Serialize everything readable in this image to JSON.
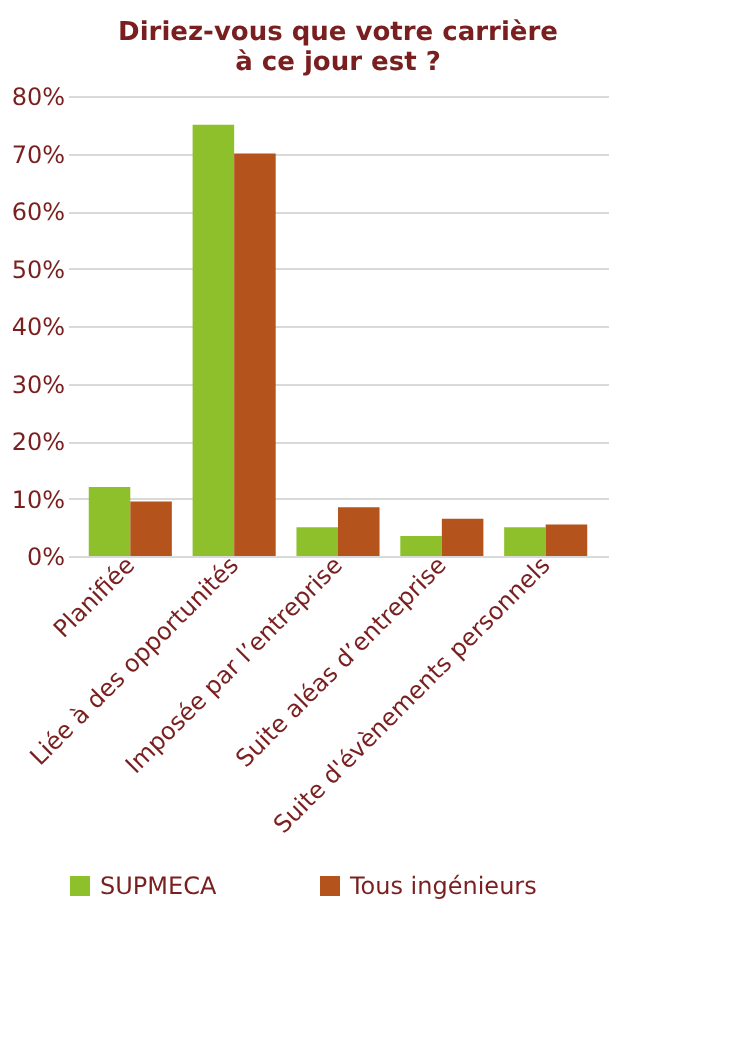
{
  "chart_data": {
    "type": "bar",
    "title": "Diriez-vous que votre carrière\nà ce jour est ?",
    "categories": [
      "Planifiée",
      "Liée à des opportunités",
      "Imposée par l’entreprise",
      "Suite aléas d’entreprise",
      "Suite d'évènements personnels"
    ],
    "series": [
      {
        "name": "SUPMECA",
        "color": "#8dc02b",
        "values": [
          12,
          75,
          5,
          3.5,
          5
        ]
      },
      {
        "name": "Tous ingénieurs",
        "color": "#b5531c",
        "values": [
          9.5,
          70,
          8.5,
          6.5,
          5.5
        ]
      }
    ],
    "ylim": [
      0,
      80
    ],
    "yticks": [
      {
        "value": 0,
        "label": "0%"
      },
      {
        "value": 10,
        "label": "10%"
      },
      {
        "value": 20,
        "label": "20%"
      },
      {
        "value": 30,
        "label": "30%"
      },
      {
        "value": 40,
        "label": "40%"
      },
      {
        "value": 50,
        "label": "50%"
      },
      {
        "value": 60,
        "label": "60%"
      },
      {
        "value": 70,
        "label": "70%"
      },
      {
        "value": 80,
        "label": "80%"
      }
    ],
    "grid": "y",
    "legend": "bottom"
  }
}
